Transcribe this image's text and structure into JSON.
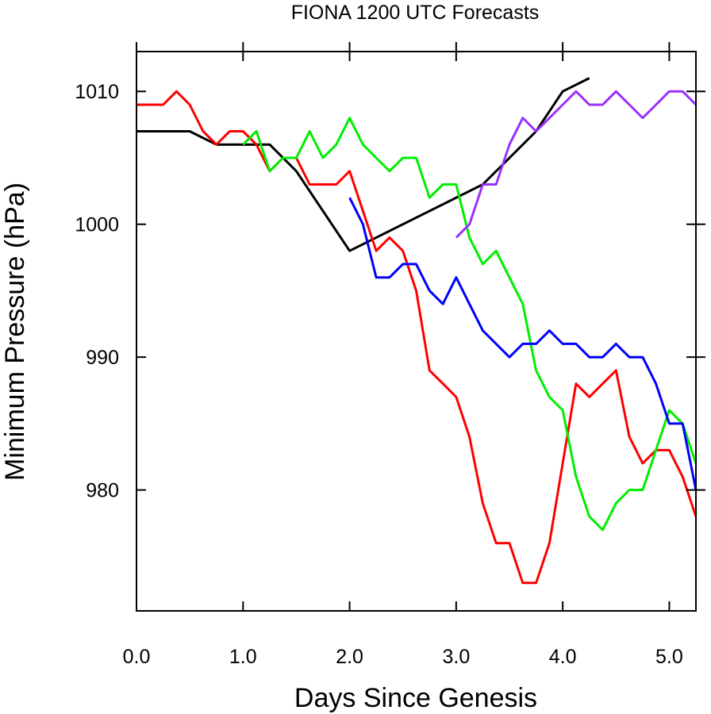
{
  "chart_data": {
    "type": "line",
    "title": "FIONA 1200 UTC Forecasts",
    "xlabel": "Days Since Genesis",
    "ylabel": "Minimum Pressure (hPa)",
    "xlim": [
      0.0,
      5.25
    ],
    "ylim": [
      970.9,
      1013.0
    ],
    "x_ticks": [
      0,
      1,
      2,
      3,
      4,
      5
    ],
    "x_tick_labels": [
      "0.0",
      "1.0",
      "2.0",
      "3.0",
      "4.0",
      "5.0"
    ],
    "y_ticks": [
      980,
      990,
      1000,
      1010
    ],
    "y_tick_labels": [
      "980",
      "990",
      "1000",
      "1010"
    ],
    "grid": false,
    "series": [
      {
        "color": "#000000",
        "x": [
          0.0,
          0.5,
          0.75,
          1.25,
          1.5,
          2.0,
          3.25,
          3.75,
          4.0,
          4.25
        ],
        "y": [
          1007,
          1007,
          1006,
          1006,
          1004,
          998,
          1003,
          1007,
          1010,
          1011
        ]
      },
      {
        "color": "#ff0000",
        "x": [
          0.0,
          0.25,
          0.375,
          0.5,
          0.625,
          0.75,
          0.875,
          1.0,
          1.125,
          1.25,
          1.375,
          1.5,
          1.625,
          1.75,
          1.875,
          2.0,
          2.125,
          2.25,
          2.375,
          2.5,
          2.625,
          2.75,
          2.875,
          3.0,
          3.125,
          3.25,
          3.375,
          3.5,
          3.625,
          3.75,
          3.875,
          4.0,
          4.125,
          4.25,
          4.375,
          4.5,
          4.625,
          4.75,
          4.875,
          5.0,
          5.125,
          5.25
        ],
        "y": [
          1009,
          1009,
          1010,
          1009,
          1007,
          1006,
          1007,
          1007,
          1006,
          1004,
          1005,
          1005,
          1003,
          1003,
          1003,
          1004,
          1001,
          998,
          999,
          998,
          995,
          989,
          988,
          987,
          984,
          979,
          976,
          976,
          973,
          973,
          976,
          982,
          988,
          987,
          988,
          989,
          984,
          982,
          983,
          983,
          981,
          978
        ]
      },
      {
        "color": "#00ee00",
        "x": [
          1.0,
          1.125,
          1.25,
          1.375,
          1.5,
          1.625,
          1.75,
          1.875,
          2.0,
          2.125,
          2.25,
          2.375,
          2.5,
          2.625,
          2.75,
          2.875,
          3.0,
          3.125,
          3.25,
          3.375,
          3.5,
          3.625,
          3.75,
          3.875,
          4.0,
          4.125,
          4.25,
          4.375,
          4.5,
          4.625,
          4.75,
          4.875,
          5.0,
          5.125,
          5.25
        ],
        "y": [
          1006,
          1007,
          1004,
          1005,
          1005,
          1007,
          1005,
          1006,
          1008,
          1006,
          1005,
          1004,
          1005,
          1005,
          1002,
          1003,
          1003,
          999,
          997,
          998,
          996,
          994,
          989,
          987,
          986,
          981,
          978,
          977,
          979,
          980,
          980,
          983,
          986,
          985,
          982
        ]
      },
      {
        "color": "#0000ff",
        "x": [
          2.0,
          2.125,
          2.25,
          2.375,
          2.5,
          2.625,
          2.75,
          2.875,
          3.0,
          3.125,
          3.25,
          3.375,
          3.5,
          3.625,
          3.75,
          3.875,
          4.0,
          4.125,
          4.25,
          4.375,
          4.5,
          4.625,
          4.75,
          4.875,
          5.0,
          5.125,
          5.25
        ],
        "y": [
          1002,
          1000,
          996,
          996,
          997,
          997,
          995,
          994,
          996,
          994,
          992,
          991,
          990,
          991,
          991,
          992,
          991,
          991,
          990,
          990,
          991,
          990,
          990,
          988,
          985,
          985,
          980
        ]
      },
      {
        "color": "#9b30ff",
        "x": [
          3.0,
          3.125,
          3.25,
          3.375,
          3.5,
          3.625,
          3.75,
          3.875,
          4.0,
          4.125,
          4.25,
          4.375,
          4.5,
          4.625,
          4.75,
          4.875,
          5.0,
          5.125,
          5.25
        ],
        "y": [
          999,
          1000,
          1003,
          1003,
          1006,
          1008,
          1007,
          1008,
          1009,
          1010,
          1009,
          1009,
          1010,
          1009,
          1008,
          1009,
          1010,
          1010,
          1009
        ]
      }
    ]
  }
}
